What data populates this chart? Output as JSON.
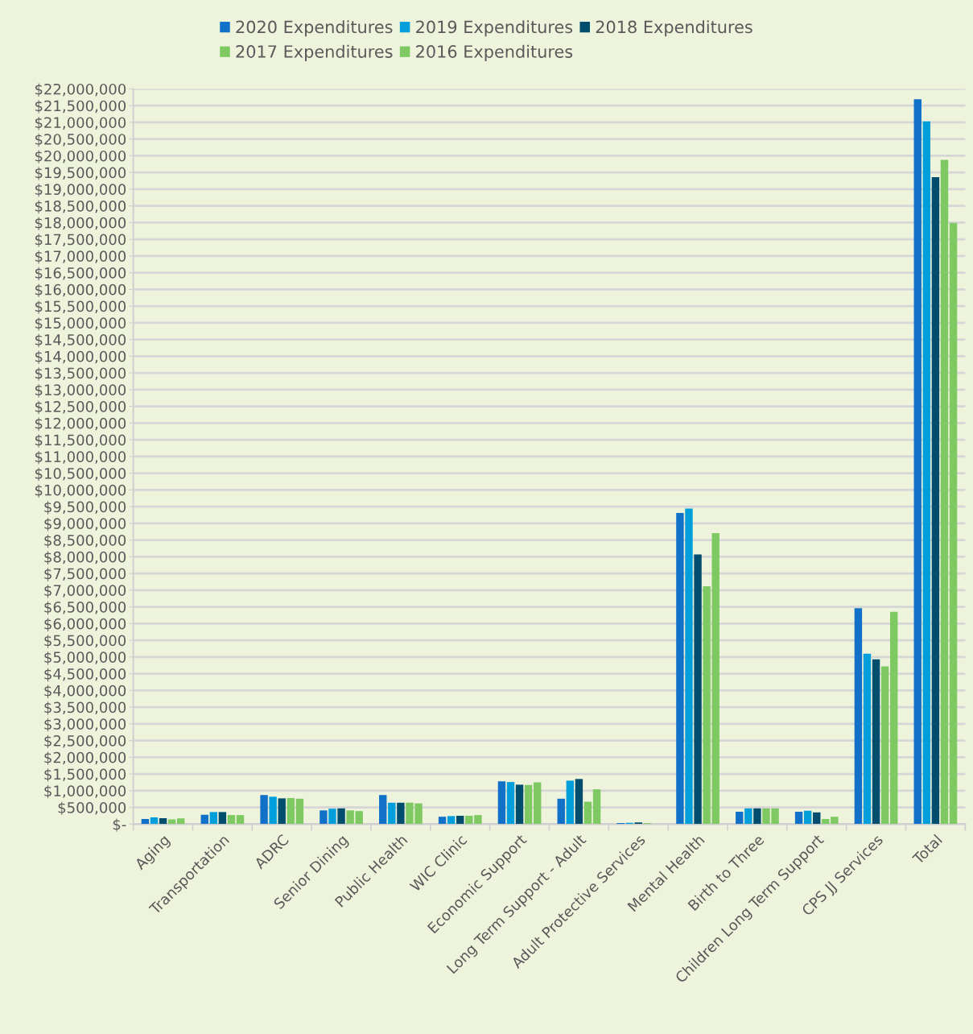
{
  "chart_data": {
    "type": "bar",
    "categories": [
      "Aging",
      "Transportation",
      "ADRC",
      "Senior Dining",
      "Public Health",
      "WIC Clinic",
      "Economic Support",
      "Long Term Support - Adult",
      "Adult Protective Services",
      "Mental Health",
      "Birth to Three",
      "Children Long Term Support",
      "CPS JJ Services",
      "Total"
    ],
    "series": [
      {
        "name": "2020 Expenditures",
        "color": "#1170c8",
        "values": [
          150000,
          280000,
          870000,
          410000,
          870000,
          220000,
          1280000,
          760000,
          30000,
          9310000,
          370000,
          370000,
          6460000,
          21690000
        ]
      },
      {
        "name": "2019 Expenditures",
        "color": "#009fdb",
        "values": [
          200000,
          360000,
          820000,
          460000,
          640000,
          240000,
          1260000,
          1300000,
          40000,
          9440000,
          470000,
          400000,
          5100000,
          21030000
        ]
      },
      {
        "name": "2018 Expenditures",
        "color": "#004d6e",
        "values": [
          180000,
          360000,
          770000,
          470000,
          640000,
          250000,
          1180000,
          1350000,
          50000,
          8070000,
          470000,
          350000,
          4930000,
          19360000
        ]
      },
      {
        "name": "2017 Expenditures",
        "color": "#7ec962",
        "values": [
          140000,
          270000,
          780000,
          410000,
          640000,
          250000,
          1170000,
          670000,
          30000,
          7120000,
          470000,
          150000,
          4720000,
          19880000
        ]
      },
      {
        "name": "2016 Expenditures",
        "color": "#7ec962",
        "values": [
          170000,
          270000,
          760000,
          390000,
          620000,
          270000,
          1250000,
          1040000,
          null,
          8710000,
          470000,
          220000,
          6350000,
          17990000
        ]
      }
    ],
    "ylim": [
      0,
      22000000
    ],
    "yticks": [
      {
        "value": 0,
        "label": "$-"
      },
      {
        "value": 500000,
        "label": "$500,000"
      },
      {
        "value": 1000000,
        "label": "$1,000,000"
      },
      {
        "value": 1500000,
        "label": "$1,500,000"
      },
      {
        "value": 2000000,
        "label": "$2,000,000"
      },
      {
        "value": 2500000,
        "label": "$2,500,000"
      },
      {
        "value": 3000000,
        "label": "$3,000,000"
      },
      {
        "value": 3500000,
        "label": "$3,500,000"
      },
      {
        "value": 4000000,
        "label": "$4,000,000"
      },
      {
        "value": 4500000,
        "label": "$4,500,000"
      },
      {
        "value": 5000000,
        "label": "$5,000,000"
      },
      {
        "value": 5500000,
        "label": "$5,500,000"
      },
      {
        "value": 6000000,
        "label": "$6,000,000"
      },
      {
        "value": 6500000,
        "label": "$6,500,000"
      },
      {
        "value": 7000000,
        "label": "$7,000,000"
      },
      {
        "value": 7500000,
        "label": "$7,500,000"
      },
      {
        "value": 8000000,
        "label": "$8,000,000"
      },
      {
        "value": 8500000,
        "label": "$8,500,000"
      },
      {
        "value": 9000000,
        "label": "$9,000,000"
      },
      {
        "value": 9500000,
        "label": "$9,500,000"
      },
      {
        "value": 10000000,
        "label": "$10,000,000"
      },
      {
        "value": 10500000,
        "label": "$10,500,000"
      },
      {
        "value": 11000000,
        "label": "$11,000,000"
      },
      {
        "value": 11500000,
        "label": "$11,500,000"
      },
      {
        "value": 12000000,
        "label": "$12,000,000"
      },
      {
        "value": 12500000,
        "label": "$12,500,000"
      },
      {
        "value": 13000000,
        "label": "$13,000,000"
      },
      {
        "value": 13500000,
        "label": "$13,500,000"
      },
      {
        "value": 14000000,
        "label": "$14,000,000"
      },
      {
        "value": 14500000,
        "label": "$14,500,000"
      },
      {
        "value": 15000000,
        "label": "$15,000,000"
      },
      {
        "value": 15500000,
        "label": "$15,500,000"
      },
      {
        "value": 16000000,
        "label": "$16,000,000"
      },
      {
        "value": 16500000,
        "label": "$16,500,000"
      },
      {
        "value": 17000000,
        "label": "$17,000,000"
      },
      {
        "value": 17500000,
        "label": "$17,500,000"
      },
      {
        "value": 18000000,
        "label": "$18,000,000"
      },
      {
        "value": 18500000,
        "label": "$18,500,000"
      },
      {
        "value": 19000000,
        "label": "$19,000,000"
      },
      {
        "value": 19500000,
        "label": "$19,500,000"
      },
      {
        "value": 20000000,
        "label": "$20,000,000"
      },
      {
        "value": 20500000,
        "label": "$20,500,000"
      },
      {
        "value": 21000000,
        "label": "$21,000,000"
      },
      {
        "value": 21500000,
        "label": "$21,500,000"
      },
      {
        "value": 22000000,
        "label": "$22,000,000"
      }
    ],
    "grid": "y",
    "legend": "top"
  }
}
